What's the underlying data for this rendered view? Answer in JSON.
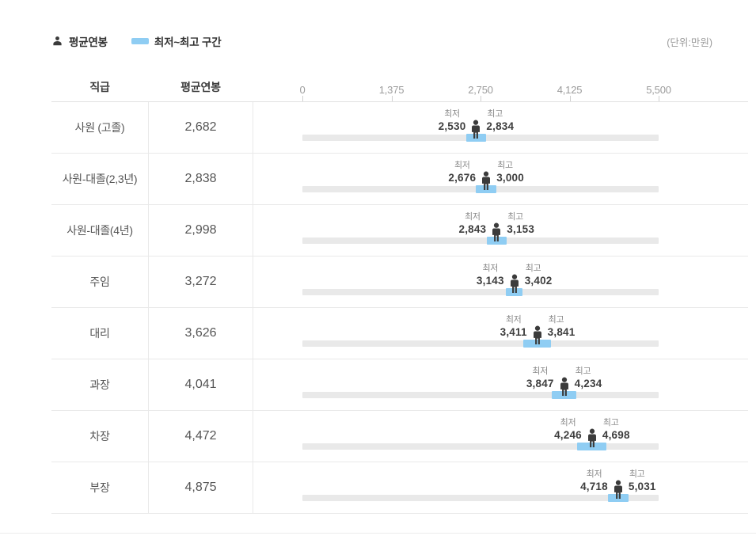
{
  "legend": {
    "avg_label": "평균연봉",
    "range_label": "최저~최고 구간"
  },
  "unit_note": "(단위:만원)",
  "table_header": {
    "position_col": "직급",
    "avg_col": "평균연봉"
  },
  "colors": {
    "range_blue": "#8fcdf3",
    "track_gray": "#e9e9e9",
    "person_dark": "#3b3b3b"
  },
  "chart_data": {
    "type": "bar",
    "variant": "horizontal-range-with-average-marker",
    "unit": "만원",
    "axis_range": [
      0,
      5500
    ],
    "axis_ticks": [
      "0",
      "1,375",
      "2,750",
      "4,125",
      "5,500"
    ],
    "min_label": "최저",
    "max_label": "최고",
    "legend": [
      "평균연봉",
      "최저~최고 구간"
    ],
    "rows": [
      {
        "position": "사원 (고졸)",
        "avg": 2682,
        "min": 2530,
        "max": 2834,
        "avg_text": "2,682",
        "min_text": "2,530",
        "max_text": "2,834"
      },
      {
        "position": "사원-대졸(2,3년)",
        "avg": 2838,
        "min": 2676,
        "max": 3000,
        "avg_text": "2,838",
        "min_text": "2,676",
        "max_text": "3,000"
      },
      {
        "position": "사원-대졸(4년)",
        "avg": 2998,
        "min": 2843,
        "max": 3153,
        "avg_text": "2,998",
        "min_text": "2,843",
        "max_text": "3,153"
      },
      {
        "position": "주임",
        "avg": 3272,
        "min": 3143,
        "max": 3402,
        "avg_text": "3,272",
        "min_text": "3,143",
        "max_text": "3,402"
      },
      {
        "position": "대리",
        "avg": 3626,
        "min": 3411,
        "max": 3841,
        "avg_text": "3,626",
        "min_text": "3,411",
        "max_text": "3,841"
      },
      {
        "position": "과장",
        "avg": 4041,
        "min": 3847,
        "max": 4234,
        "avg_text": "4,041",
        "min_text": "3,847",
        "max_text": "4,234"
      },
      {
        "position": "차장",
        "avg": 4472,
        "min": 4246,
        "max": 4698,
        "avg_text": "4,472",
        "min_text": "4,246",
        "max_text": "4,698"
      },
      {
        "position": "부장",
        "avg": 4875,
        "min": 4718,
        "max": 5031,
        "avg_text": "4,875",
        "min_text": "4,718",
        "max_text": "5,031"
      }
    ]
  }
}
